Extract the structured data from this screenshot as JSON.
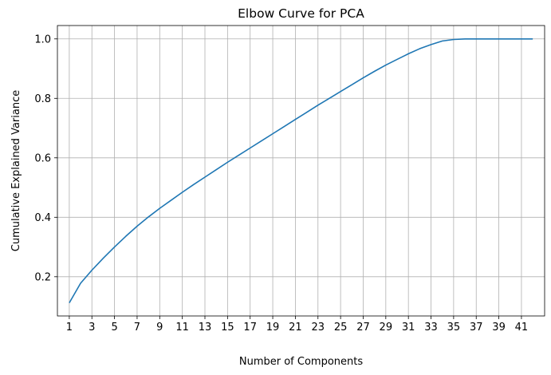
{
  "chart_data": {
    "type": "line",
    "title": "Elbow Curve for PCA",
    "xlabel": "Number of Components",
    "ylabel": "Cumulative Explained Variance",
    "xlim": [
      -0.05,
      43.05
    ],
    "ylim": [
      0.068,
      1.045
    ],
    "grid": true,
    "line_color": "#1f77b4",
    "grid_color": "#b0b0b0",
    "xticks": [
      1,
      3,
      5,
      7,
      9,
      11,
      13,
      15,
      17,
      19,
      21,
      23,
      25,
      27,
      29,
      31,
      33,
      35,
      37,
      39,
      41
    ],
    "yticks": [
      0.2,
      0.4,
      0.6,
      0.8,
      1.0
    ],
    "ytick_labels": [
      "0.2",
      "0.4",
      "0.6",
      "0.8",
      "1.0"
    ],
    "x": [
      1,
      2,
      3,
      4,
      5,
      6,
      7,
      8,
      9,
      10,
      11,
      12,
      13,
      14,
      15,
      16,
      17,
      18,
      19,
      20,
      21,
      22,
      23,
      24,
      25,
      26,
      27,
      28,
      29,
      30,
      31,
      32,
      33,
      34,
      35,
      36,
      37,
      38,
      39,
      40,
      41,
      42
    ],
    "y": [
      0.112,
      0.178,
      0.222,
      0.262,
      0.3,
      0.336,
      0.37,
      0.401,
      0.43,
      0.457,
      0.484,
      0.51,
      0.535,
      0.56,
      0.585,
      0.609,
      0.633,
      0.657,
      0.681,
      0.705,
      0.729,
      0.753,
      0.777,
      0.8,
      0.823,
      0.846,
      0.869,
      0.891,
      0.912,
      0.931,
      0.95,
      0.967,
      0.981,
      0.993,
      0.998,
      1.0,
      1.0,
      1.0,
      1.0,
      1.0,
      1.0,
      1.0
    ]
  }
}
